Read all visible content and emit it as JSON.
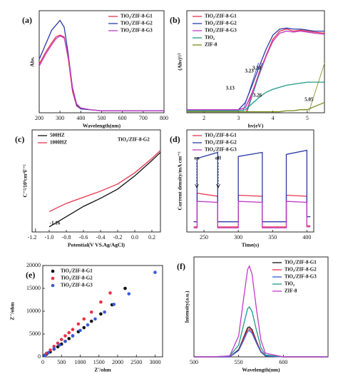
{
  "chart_data": [
    {
      "type": "line",
      "label": "(a)",
      "x_label": "Wavelength(nm)",
      "y_label": "Abs.",
      "legend": "upper right",
      "x": [
        200,
        230,
        260,
        280,
        300,
        320,
        340,
        360,
        380,
        400,
        450,
        500,
        600,
        700,
        800
      ],
      "xlim": [
        200,
        800
      ],
      "xticks": [
        200,
        300,
        400,
        500,
        600,
        700,
        800
      ],
      "ylim": [
        0,
        1.05
      ],
      "series": [
        {
          "name": "TiO₂/ZIF-8-G1",
          "color": "#e8334a",
          "values": [
            0.5,
            0.62,
            0.72,
            0.78,
            0.8,
            0.78,
            0.55,
            0.22,
            0.07,
            0.04,
            0.03,
            0.02,
            0.02,
            0.02,
            0.02
          ]
        },
        {
          "name": "TiO₂/ZIF-8-G2",
          "color": "#2b3aa8",
          "values": [
            0.55,
            0.7,
            0.85,
            0.9,
            0.95,
            0.88,
            0.6,
            0.25,
            0.08,
            0.04,
            0.03,
            0.02,
            0.02,
            0.02,
            0.02
          ]
        },
        {
          "name": "TiO₂/ZIF-8-G3",
          "color": "#c03ac8",
          "values": [
            0.48,
            0.6,
            0.7,
            0.76,
            0.79,
            0.77,
            0.58,
            0.26,
            0.09,
            0.05,
            0.03,
            0.02,
            0.02,
            0.02,
            0.02
          ]
        }
      ]
    },
    {
      "type": "line",
      "label": "(b)",
      "x_label": "hv(eV)",
      "y_label": "(Ahν)¹/²",
      "legend": "upper left",
      "x": [
        1.5,
        2,
        2.5,
        3,
        3.2,
        3.4,
        3.6,
        3.8,
        4,
        4.2,
        4.4,
        4.6,
        4.8,
        5,
        5.2,
        5.5
      ],
      "xlim": [
        1.5,
        5.5
      ],
      "xticks": [
        2,
        3,
        4,
        5
      ],
      "ylim": [
        0,
        1
      ],
      "series": [
        {
          "name": "TiO₂/ZIF-8-G1",
          "color": "#e8334a",
          "gap": 3.23,
          "values": [
            0.03,
            0.03,
            0.03,
            0.03,
            0.05,
            0.2,
            0.38,
            0.56,
            0.72,
            0.8,
            0.82,
            0.8,
            0.81,
            0.8,
            0.79,
            0.78
          ]
        },
        {
          "name": "TiO₂/ZIF-8-G2",
          "color": "#2b3aa8",
          "gap": 3.13,
          "values": [
            0.03,
            0.03,
            0.03,
            0.03,
            0.1,
            0.27,
            0.45,
            0.62,
            0.76,
            0.82,
            0.83,
            0.82,
            0.82,
            0.81,
            0.8,
            0.8
          ]
        },
        {
          "name": "TiO₂/ZIF-8-G3",
          "color": "#c03ac8",
          "gap": 3.24,
          "values": [
            0.03,
            0.03,
            0.03,
            0.03,
            0.05,
            0.19,
            0.37,
            0.55,
            0.7,
            0.78,
            0.8,
            0.79,
            0.8,
            0.79,
            0.78,
            0.77
          ]
        },
        {
          "name": "TiO₂",
          "color": "#1f9a8a",
          "gap": 3.26,
          "values": [
            0.02,
            0.02,
            0.02,
            0.02,
            0.03,
            0.09,
            0.15,
            0.2,
            0.23,
            0.25,
            0.27,
            0.28,
            0.29,
            0.3,
            0.3,
            0.3
          ]
        },
        {
          "name": "ZIF-8",
          "color": "#7a8a1a",
          "gap": 5.05,
          "values": [
            0.01,
            0.01,
            0.01,
            0.01,
            0.01,
            0.01,
            0.01,
            0.01,
            0.01,
            0.01,
            0.02,
            0.02,
            0.03,
            0.03,
            0.06,
            0.1
          ]
        }
      ]
    },
    {
      "type": "line",
      "label": "(c)",
      "x_label": "Potential(V VS.Ag/AgCl)",
      "y_label": "C⁻²/10⁹cm⁴F⁻²",
      "legend": "upper left",
      "sample": "TiO₂/ZIF-8-G2",
      "flatband": -1.16,
      "x": [
        -1.0,
        -0.8,
        -0.6,
        -0.4,
        -0.2,
        0,
        0.2,
        0.3
      ],
      "xlim": [
        -1.2,
        0.3
      ],
      "xticks": [
        -1.2,
        {
          "value": -1.0,
          "label": "-1.0"
        },
        -0.8,
        -0.6,
        -0.4,
        -0.2,
        {
          "value": 0,
          "label": "0.0"
        },
        0.2
      ],
      "ylim": [
        0,
        1
      ],
      "series": [
        {
          "name": "500HZ",
          "color": "#111111",
          "values": [
            0.05,
            0.15,
            0.25,
            0.33,
            0.42,
            0.55,
            0.7,
            0.78
          ]
        },
        {
          "name": "1000HZ",
          "color": "#e8334a",
          "values": [
            0.2,
            0.28,
            0.34,
            0.4,
            0.47,
            0.58,
            0.72,
            0.8
          ]
        }
      ]
    },
    {
      "type": "line",
      "label": "(d)",
      "x_label": "Time(s)",
      "y_label": "Current density/mA cm⁻²",
      "legend": "upper left",
      "annotations": [
        "on",
        "off"
      ],
      "x": [
        235,
        240,
        240,
        270,
        270,
        300,
        300,
        335,
        335,
        370,
        370,
        400,
        400,
        405
      ],
      "xlim": [
        225,
        410
      ],
      "xticks": [
        250,
        300,
        350,
        400
      ],
      "ylim": [
        0,
        1
      ],
      "series": [
        {
          "name": "TiO₂/ZIF-8-G1",
          "color": "#e8334a",
          "values": [
            0.05,
            0.05,
            0.38,
            0.35,
            0.05,
            0.05,
            0.36,
            0.35,
            0.05,
            0.05,
            0.36,
            0.35,
            0.06,
            0.06
          ]
        },
        {
          "name": "TiO₂/ZIF-8-G2",
          "color": "#2b3aa8",
          "values": [
            0.1,
            0.1,
            0.72,
            0.78,
            0.1,
            0.1,
            0.74,
            0.78,
            0.1,
            0.1,
            0.76,
            0.8,
            0.15,
            0.15
          ]
        },
        {
          "name": "TiO₂/ZIF-8-G3",
          "color": "#c03ac8",
          "values": [
            0.04,
            0.04,
            0.3,
            0.29,
            0.04,
            0.04,
            0.3,
            0.29,
            0.04,
            0.04,
            0.3,
            0.29,
            0.05,
            0.05
          ]
        }
      ]
    },
    {
      "type": "scatter",
      "label": "(e)",
      "x_label": "Z'/ohm",
      "y_label": "Z''/ohm",
      "legend": "upper left",
      "xlim": [
        0,
        3200
      ],
      "xticks": [
        0,
        500,
        1000,
        1500,
        2000,
        2500,
        3000
      ],
      "ylim": [
        0,
        20000
      ],
      "yticks": [
        0,
        5000,
        10000,
        15000,
        20000
      ],
      "series": [
        {
          "name": "TiO₂/ZIF-8-G1",
          "color": "#111111",
          "x": [
            50,
            100,
            200,
            300,
            400,
            500,
            600,
            700,
            800,
            950,
            1100,
            1300,
            1550,
            1850,
            2200
          ],
          "values": [
            300,
            600,
            1100,
            1700,
            2200,
            2800,
            3400,
            4000,
            4600,
            5500,
            6400,
            7800,
            9400,
            11400,
            15000
          ]
        },
        {
          "name": "TiO₂/ZIF-8-G2",
          "color": "#e8334a",
          "x": [
            50,
            100,
            200,
            300,
            400,
            500,
            600,
            700,
            800,
            950,
            1100,
            1300,
            1550,
            1800
          ],
          "values": [
            400,
            800,
            1500,
            2300,
            3000,
            3800,
            4600,
            5300,
            6000,
            7200,
            8300,
            9800,
            12000,
            14000
          ]
        },
        {
          "name": "TiO₂/ZIF-8-G3",
          "color": "#3a5ad8",
          "x": [
            50,
            150,
            300,
            450,
            600,
            800,
            1000,
            1200,
            1400,
            1650,
            1900,
            2300,
            3000
          ],
          "values": [
            300,
            900,
            1800,
            2600,
            3400,
            4600,
            5800,
            7000,
            8300,
            9800,
            11500,
            13800,
            18500
          ]
        }
      ]
    },
    {
      "type": "line",
      "label": "(f)",
      "x_label": "Wavelength(nm)",
      "y_label": "Intensity(a.u.)",
      "legend": "upper right",
      "x": [
        500,
        520,
        540,
        550,
        555,
        560,
        562,
        565,
        570,
        575,
        580,
        600,
        620,
        650
      ],
      "xlim": [
        500,
        650
      ],
      "xticks": [
        500,
        550,
        600
      ],
      "ylim": [
        0,
        1.1
      ],
      "series": [
        {
          "name": "TiO₂/ZIF-8-G1",
          "color": "#111111",
          "values": [
            0,
            0,
            0,
            0.08,
            0.2,
            0.32,
            0.33,
            0.3,
            0.17,
            0.06,
            0.01,
            0,
            0,
            0
          ]
        },
        {
          "name": "TiO₂/ZIF-8-G2",
          "color": "#e8334a",
          "values": [
            0,
            0,
            0,
            0.07,
            0.19,
            0.3,
            0.31,
            0.28,
            0.16,
            0.06,
            0.01,
            0,
            0,
            0
          ]
        },
        {
          "name": "TiO₂/ZIF-8-G3",
          "color": "#3a5ad8",
          "values": [
            0,
            0,
            0,
            0.07,
            0.17,
            0.28,
            0.29,
            0.26,
            0.15,
            0.05,
            0.01,
            0,
            0,
            0
          ]
        },
        {
          "name": "TiO₂",
          "color": "#1f9a8a",
          "values": [
            0,
            0,
            0.01,
            0.13,
            0.33,
            0.53,
            0.55,
            0.5,
            0.29,
            0.1,
            0.02,
            0,
            0,
            0
          ]
        },
        {
          "name": "ZIF-8",
          "color": "#c03ac8",
          "values": [
            0,
            0,
            0.01,
            0.23,
            0.6,
            0.96,
            1,
            0.91,
            0.52,
            0.18,
            0.04,
            0,
            0,
            0
          ]
        }
      ]
    }
  ]
}
